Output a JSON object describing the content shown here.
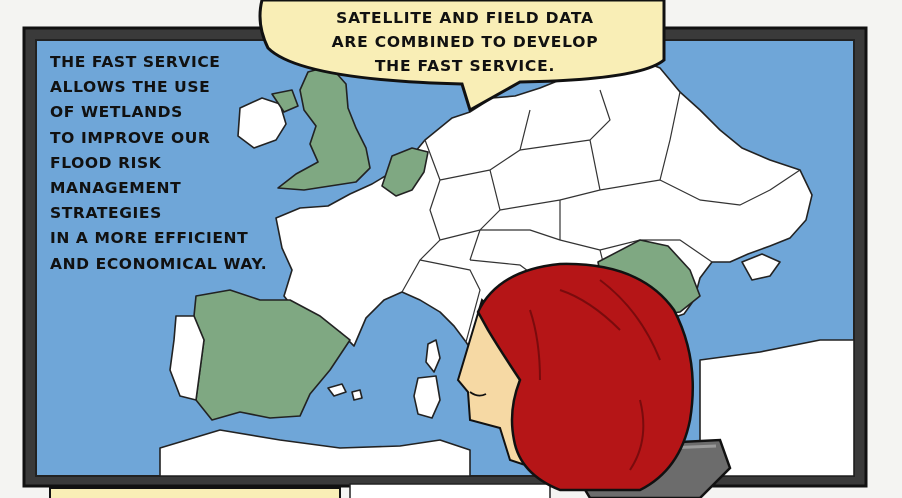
{
  "panel": {
    "caption_lines": [
      "The FAST service",
      "allows the use",
      "of wetlands",
      "to improve our",
      "flood risk",
      "management",
      "strategies",
      "in a more efficient",
      "and economical way."
    ],
    "speech_bubble_lines": [
      "Satellite and field data",
      "are combined to develop",
      "the FAST service."
    ]
  },
  "colors": {
    "sea": "#6fa6d8",
    "land": "#ffffff",
    "highlighted_country": "#7fa882",
    "bubble": "#f9eeb6",
    "hair": "#b51517",
    "skin": "#f6d9a4",
    "chair": "#6c6c6c",
    "monitor_frame": "#3a3a3a"
  },
  "highlighted_countries": [
    "Ireland",
    "United Kingdom",
    "Netherlands",
    "Spain",
    "Romania"
  ],
  "icons": [
    "map-of-europe",
    "woman-character",
    "office-chair",
    "speech-bubble"
  ]
}
